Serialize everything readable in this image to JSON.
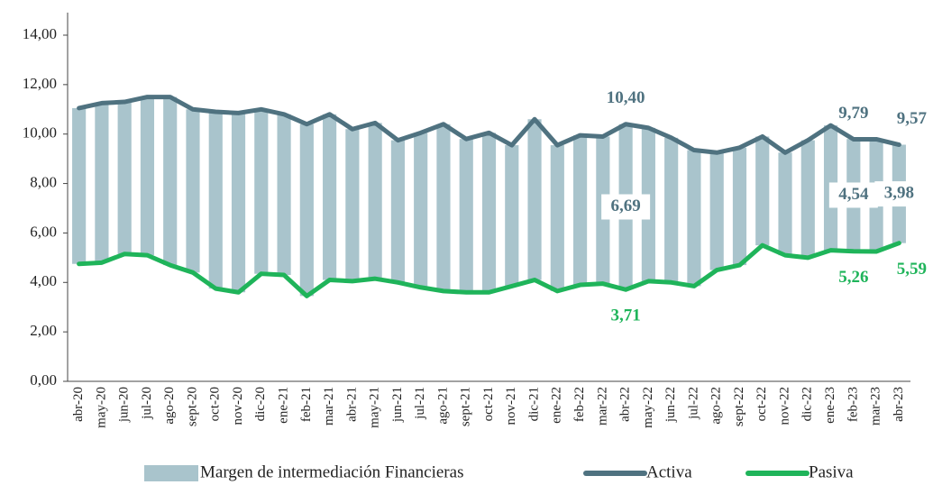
{
  "chart_data": {
    "type": "combo",
    "categories": [
      "abr-20",
      "may-20",
      "jun-20",
      "jul-20",
      "ago-20",
      "sept-20",
      "oct-20",
      "nov-20",
      "dic-20",
      "ene-21",
      "feb-21",
      "mar-21",
      "abr-21",
      "may-21",
      "jun-21",
      "jul-21",
      "ago-21",
      "sept-21",
      "oct-21",
      "nov-21",
      "dic-21",
      "ene-22",
      "feb-22",
      "mar-22",
      "abr-22",
      "may-22",
      "jun-22",
      "jul-22",
      "ago-22",
      "sept-22",
      "oct-22",
      "nov-22",
      "dic-22",
      "ene-23",
      "feb-23",
      "mar-23",
      "abr-23"
    ],
    "series": [
      {
        "name": "Margen de intermediación Financieras",
        "kind": "bar",
        "color": "#a9c4cc",
        "values": [
          6.3,
          6.45,
          6.15,
          6.4,
          6.8,
          6.6,
          7.15,
          7.25,
          6.65,
          6.5,
          6.95,
          6.7,
          6.15,
          6.3,
          5.75,
          6.25,
          6.75,
          6.2,
          6.45,
          5.7,
          6.5,
          5.9,
          6.05,
          5.95,
          6.69,
          6.2,
          5.85,
          5.5,
          4.75,
          4.75,
          4.4,
          4.15,
          4.75,
          5.05,
          4.54,
          4.54,
          3.98
        ],
        "value_labels": [
          null,
          null,
          null,
          null,
          null,
          null,
          null,
          null,
          null,
          null,
          null,
          null,
          null,
          null,
          null,
          null,
          null,
          null,
          null,
          null,
          null,
          null,
          null,
          null,
          "6,69",
          null,
          null,
          null,
          null,
          null,
          null,
          null,
          null,
          null,
          "4,54",
          null,
          "3,98"
        ]
      },
      {
        "name": "Activa",
        "kind": "line",
        "color": "#4f7280",
        "values": [
          11.05,
          11.25,
          11.3,
          11.5,
          11.5,
          11.0,
          10.9,
          10.85,
          11.0,
          10.8,
          10.4,
          10.8,
          10.2,
          10.45,
          9.75,
          10.05,
          10.4,
          9.8,
          10.05,
          9.55,
          10.6,
          9.55,
          9.95,
          9.9,
          10.4,
          10.25,
          9.85,
          9.35,
          9.25,
          9.45,
          9.9,
          9.25,
          9.75,
          10.35,
          9.79,
          9.79,
          9.57
        ],
        "value_labels": [
          null,
          null,
          null,
          null,
          null,
          null,
          null,
          null,
          null,
          null,
          null,
          null,
          null,
          null,
          null,
          null,
          null,
          null,
          null,
          null,
          null,
          null,
          null,
          null,
          "10,40",
          null,
          null,
          null,
          null,
          null,
          null,
          null,
          null,
          null,
          "9,79",
          null,
          "9,57"
        ]
      },
      {
        "name": "Pasiva",
        "kind": "line",
        "color": "#1fb45a",
        "values": [
          4.75,
          4.8,
          5.15,
          5.1,
          4.7,
          4.4,
          3.75,
          3.6,
          4.35,
          4.3,
          3.45,
          4.1,
          4.05,
          4.15,
          4.0,
          3.8,
          3.65,
          3.6,
          3.6,
          3.85,
          4.1,
          3.65,
          3.9,
          3.95,
          3.71,
          4.05,
          4.0,
          3.85,
          4.5,
          4.7,
          5.5,
          5.1,
          5.0,
          5.3,
          5.26,
          5.25,
          5.59
        ],
        "value_labels": [
          null,
          null,
          null,
          null,
          null,
          null,
          null,
          null,
          null,
          null,
          null,
          null,
          null,
          null,
          null,
          null,
          null,
          null,
          null,
          null,
          null,
          null,
          null,
          null,
          "3,71",
          null,
          null,
          null,
          null,
          null,
          null,
          null,
          null,
          null,
          "5,26",
          null,
          "5,59"
        ]
      }
    ],
    "ylim": [
      0,
      14
    ],
    "yticks": [
      {
        "value": 0,
        "label": "0,00"
      },
      {
        "value": 2,
        "label": "2,00"
      },
      {
        "value": 4,
        "label": "4,00"
      },
      {
        "value": 6,
        "label": "6,00"
      },
      {
        "value": 8,
        "label": "8,00"
      },
      {
        "value": 10,
        "label": "10,00"
      },
      {
        "value": 12,
        "label": "12,00"
      },
      {
        "value": 14,
        "label": "14,00"
      }
    ],
    "legend": "bottom"
  }
}
